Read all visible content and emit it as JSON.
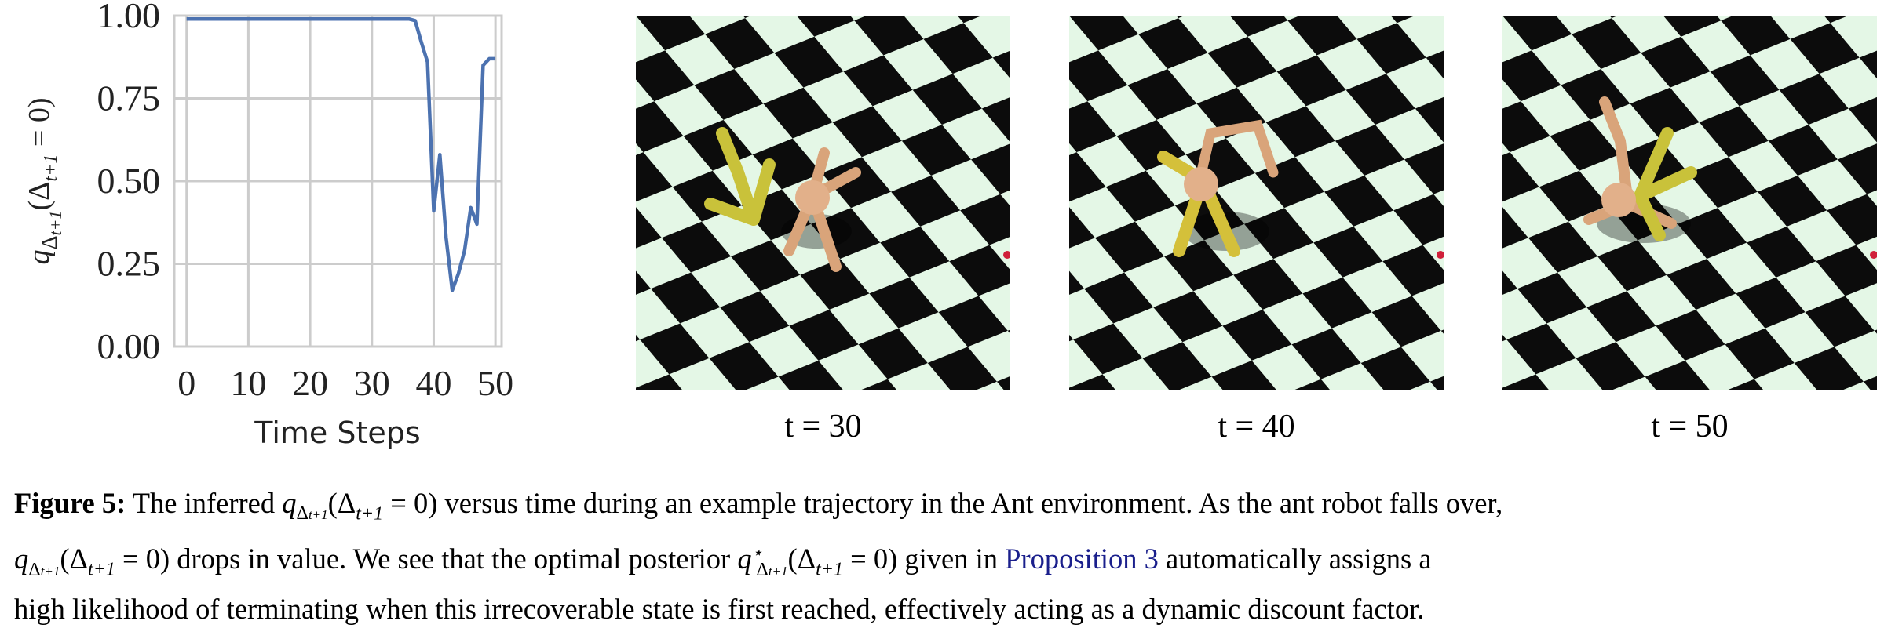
{
  "chart_data": {
    "type": "line",
    "title": "",
    "xlabel": "Time Steps",
    "ylabel": "q_{Δ_{t+1}}(Δ_{t+1} = 0)",
    "ylabel_parts": {
      "q": "q",
      "sub": "Δ",
      "subsub": "t+1",
      "arg": "(Δ",
      "argsub": "t+1",
      "rest": " = 0)"
    },
    "xlim": [
      -2,
      51
    ],
    "ylim": [
      0,
      1
    ],
    "x_ticks": [
      "0",
      "10",
      "20",
      "30",
      "40",
      "50"
    ],
    "y_ticks": [
      "0.00",
      "0.25",
      "0.50",
      "0.75",
      "1.00"
    ],
    "grid": true,
    "series": [
      {
        "color": "#4c72b0",
        "x": [
          0,
          10,
          20,
          30,
          36,
          37,
          38,
          39,
          40,
          41,
          42,
          43,
          44,
          45,
          46,
          47,
          48,
          49,
          50
        ],
        "y": [
          0.99,
          0.99,
          0.99,
          0.99,
          0.99,
          0.985,
          0.92,
          0.86,
          0.41,
          0.58,
          0.33,
          0.17,
          0.22,
          0.29,
          0.42,
          0.37,
          0.85,
          0.87,
          0.87
        ]
      }
    ]
  },
  "panels": [
    {
      "label": "t = 30"
    },
    {
      "label": "t = 40"
    },
    {
      "label": "t = 50"
    }
  ],
  "caption": {
    "fig_label": "Figure 5:",
    "l1_a": "The inferred",
    "q": "q",
    "delta": "Δ",
    "tplus1": "t+1",
    "arg_close": " = 0)",
    "l1_b": "versus time during an example trajectory in the Ant environment. As the ant robot falls over,",
    "l2_a": "drops in value. We see that the optimal posterior",
    "star": "⋆",
    "l2_b": "given in",
    "prop_link": "Proposition 3",
    "l2_c": "automatically assigns a",
    "l3": "high likelihood of terminating when this irrecoverable state is first reached, effectively acting as a dynamic discount factor."
  }
}
